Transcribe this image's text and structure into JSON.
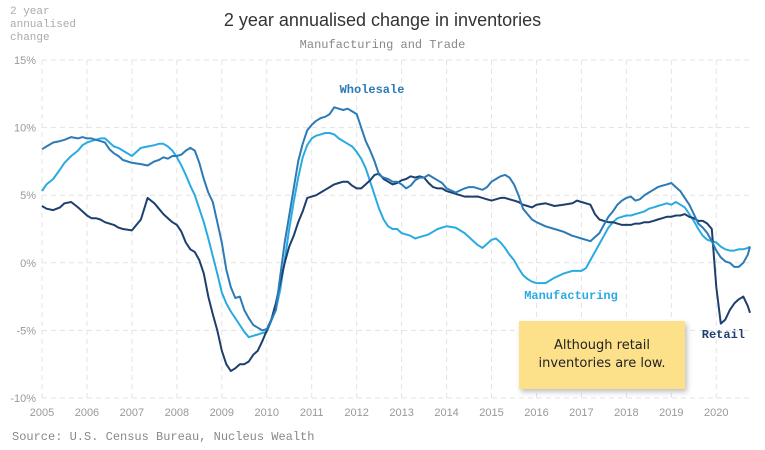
{
  "chart_data": {
    "type": "line",
    "title": "2 year annualised change in inventories",
    "subtitle": "Manufacturing and Trade",
    "ylabel": "2 year annualised change",
    "xlabel": "",
    "source": "Source: U.S. Census Bureau, Nucleus Wealth",
    "xlim": [
      2005.0,
      2020.75
    ],
    "ylim": [
      -10,
      15
    ],
    "y_ticks": [
      -10,
      -5,
      0,
      5,
      10,
      15
    ],
    "y_tick_labels": [
      "-10%",
      "-5%",
      "0%",
      "5%",
      "10%",
      "15%"
    ],
    "x_ticks": [
      2005,
      2006,
      2007,
      2008,
      2009,
      2010,
      2011,
      2012,
      2013,
      2014,
      2015,
      2016,
      2017,
      2018,
      2019,
      2020
    ],
    "x_tick_labels": [
      "2005",
      "2006",
      "2007",
      "2008",
      "2009",
      "2010",
      "2011",
      "2012",
      "2013",
      "2014",
      "2015",
      "2016",
      "2017",
      "2018",
      "2019",
      "2020"
    ],
    "grid": true,
    "annotation": "Although retail inventories are low.",
    "series": [
      {
        "name": "Wholesale",
        "color": "#2c7bb6",
        "x": [
          2005.0,
          2005.1,
          2005.25,
          2005.4,
          2005.5,
          2005.65,
          2005.8,
          2005.9,
          2006.0,
          2006.1,
          2006.2,
          2006.3,
          2006.4,
          2006.5,
          2006.6,
          2006.7,
          2006.8,
          2007.0,
          2007.2,
          2007.35,
          2007.5,
          2007.6,
          2007.7,
          2007.8,
          2007.9,
          2008.0,
          2008.1,
          2008.2,
          2008.3,
          2008.4,
          2008.5,
          2008.6,
          2008.7,
          2008.8,
          2008.9,
          2009.0,
          2009.1,
          2009.2,
          2009.3,
          2009.4,
          2009.5,
          2009.6,
          2009.7,
          2009.8,
          2009.9,
          2010.0,
          2010.1,
          2010.2,
          2010.3,
          2010.4,
          2010.5,
          2010.6,
          2010.7,
          2010.8,
          2010.9,
          2011.0,
          2011.1,
          2011.2,
          2011.3,
          2011.4,
          2011.5,
          2011.6,
          2011.7,
          2011.8,
          2011.9,
          2012.0,
          2012.1,
          2012.2,
          2012.3,
          2012.4,
          2012.5,
          2012.6,
          2012.7,
          2012.8,
          2012.9,
          2013.0,
          2013.1,
          2013.2,
          2013.3,
          2013.4,
          2013.5,
          2013.6,
          2013.7,
          2013.8,
          2013.9,
          2014.0,
          2014.2,
          2014.4,
          2014.5,
          2014.6,
          2014.7,
          2014.8,
          2014.9,
          2015.0,
          2015.1,
          2015.2,
          2015.3,
          2015.4,
          2015.5,
          2015.6,
          2015.7,
          2015.8,
          2015.9,
          2016.0,
          2016.2,
          2016.4,
          2016.6,
          2016.8,
          2016.9,
          2017.0,
          2017.1,
          2017.2,
          2017.3,
          2017.4,
          2017.5,
          2017.6,
          2017.7,
          2017.8,
          2017.9,
          2018.0,
          2018.1,
          2018.2,
          2018.3,
          2018.4,
          2018.5,
          2018.6,
          2018.7,
          2018.8,
          2018.9,
          2019.0,
          2019.1,
          2019.2,
          2019.3,
          2019.4,
          2019.5,
          2019.6,
          2019.7,
          2019.8,
          2019.9,
          2020.0,
          2020.1,
          2020.2,
          2020.3,
          2020.4,
          2020.5,
          2020.6,
          2020.7,
          2020.75
        ],
        "y": [
          8.4,
          8.6,
          8.9,
          9.0,
          9.1,
          9.3,
          9.2,
          9.3,
          9.2,
          9.2,
          9.1,
          9.0,
          8.9,
          8.4,
          8.1,
          7.9,
          7.6,
          7.4,
          7.3,
          7.2,
          7.5,
          7.6,
          7.8,
          7.7,
          7.9,
          7.9,
          8.0,
          8.3,
          8.5,
          8.3,
          7.4,
          6.2,
          5.2,
          4.5,
          3.0,
          1.5,
          -0.5,
          -1.8,
          -2.6,
          -2.5,
          -3.5,
          -4.1,
          -4.6,
          -4.8,
          -5.0,
          -4.9,
          -4.2,
          -3.5,
          -1.0,
          1.5,
          3.5,
          5.5,
          7.5,
          8.8,
          9.8,
          10.2,
          10.5,
          10.7,
          10.8,
          11.0,
          11.5,
          11.4,
          11.3,
          11.4,
          11.2,
          11.0,
          10.0,
          9.0,
          8.3,
          7.5,
          6.5,
          6.3,
          6.2,
          6.0,
          6.0,
          5.8,
          5.5,
          5.7,
          6.1,
          6.3,
          6.3,
          6.5,
          6.3,
          6.1,
          5.9,
          5.5,
          5.2,
          5.5,
          5.6,
          5.6,
          5.5,
          5.4,
          5.6,
          6.0,
          6.2,
          6.4,
          6.5,
          6.3,
          5.8,
          5.0,
          4.0,
          3.6,
          3.2,
          3.0,
          2.7,
          2.5,
          2.3,
          2.0,
          1.9,
          1.8,
          1.7,
          1.6,
          1.9,
          2.2,
          2.8,
          3.4,
          3.8,
          4.3,
          4.6,
          4.8,
          4.9,
          4.6,
          4.7,
          5.0,
          5.2,
          5.4,
          5.6,
          5.7,
          5.8,
          5.9,
          5.6,
          5.3,
          4.8,
          4.3,
          3.6,
          2.9,
          2.6,
          2.2,
          1.6,
          0.9,
          0.4,
          0.1,
          0.0,
          -0.3,
          -0.3,
          0.0,
          0.6,
          1.2
        ]
      },
      {
        "name": "Manufacturing",
        "color": "#29abe2",
        "x": [
          2005.0,
          2005.1,
          2005.25,
          2005.4,
          2005.5,
          2005.65,
          2005.8,
          2005.9,
          2006.0,
          2006.1,
          2006.2,
          2006.3,
          2006.4,
          2006.5,
          2006.6,
          2006.7,
          2006.8,
          2007.0,
          2007.2,
          2007.35,
          2007.5,
          2007.6,
          2007.7,
          2007.8,
          2007.9,
          2008.0,
          2008.1,
          2008.2,
          2008.3,
          2008.4,
          2008.5,
          2008.6,
          2008.7,
          2008.8,
          2008.9,
          2009.0,
          2009.1,
          2009.2,
          2009.3,
          2009.4,
          2009.5,
          2009.6,
          2009.7,
          2009.8,
          2009.9,
          2010.0,
          2010.1,
          2010.2,
          2010.3,
          2010.4,
          2010.5,
          2010.6,
          2010.7,
          2010.8,
          2010.9,
          2011.0,
          2011.1,
          2011.2,
          2011.3,
          2011.4,
          2011.5,
          2011.6,
          2011.7,
          2011.8,
          2011.9,
          2012.0,
          2012.1,
          2012.2,
          2012.3,
          2012.4,
          2012.5,
          2012.6,
          2012.7,
          2012.8,
          2012.9,
          2013.0,
          2013.1,
          2013.2,
          2013.3,
          2013.4,
          2013.5,
          2013.6,
          2013.7,
          2013.8,
          2013.9,
          2014.0,
          2014.2,
          2014.4,
          2014.5,
          2014.6,
          2014.7,
          2014.8,
          2014.9,
          2015.0,
          2015.1,
          2015.2,
          2015.3,
          2015.4,
          2015.5,
          2015.6,
          2015.7,
          2015.8,
          2015.9,
          2016.0,
          2016.2,
          2016.4,
          2016.6,
          2016.8,
          2016.9,
          2017.0,
          2017.1,
          2017.2,
          2017.3,
          2017.4,
          2017.5,
          2017.6,
          2017.7,
          2017.8,
          2017.9,
          2018.0,
          2018.1,
          2018.2,
          2018.3,
          2018.4,
          2018.5,
          2018.6,
          2018.7,
          2018.8,
          2018.9,
          2019.0,
          2019.1,
          2019.2,
          2019.3,
          2019.4,
          2019.5,
          2019.6,
          2019.7,
          2019.8,
          2019.9,
          2020.0,
          2020.1,
          2020.2,
          2020.3,
          2020.4,
          2020.5,
          2020.6,
          2020.7,
          2020.75
        ],
        "y": [
          5.3,
          5.8,
          6.2,
          6.9,
          7.4,
          7.9,
          8.3,
          8.7,
          8.9,
          9.0,
          9.1,
          9.2,
          9.2,
          8.9,
          8.6,
          8.5,
          8.3,
          7.9,
          8.5,
          8.6,
          8.7,
          8.8,
          8.8,
          8.6,
          8.3,
          7.8,
          7.2,
          6.5,
          5.7,
          5.0,
          4.0,
          3.0,
          1.8,
          0.5,
          -0.8,
          -2.2,
          -3.0,
          -3.6,
          -4.1,
          -4.6,
          -5.1,
          -5.5,
          -5.4,
          -5.3,
          -5.2,
          -5.1,
          -4.3,
          -3.5,
          -2.0,
          0.2,
          2.5,
          4.5,
          6.3,
          7.8,
          8.7,
          9.2,
          9.4,
          9.5,
          9.6,
          9.6,
          9.5,
          9.2,
          9.0,
          8.8,
          8.6,
          8.2,
          7.7,
          7.0,
          6.0,
          5.0,
          4.0,
          3.2,
          2.7,
          2.5,
          2.5,
          2.2,
          2.1,
          2.0,
          1.8,
          1.9,
          2.0,
          2.1,
          2.3,
          2.5,
          2.6,
          2.7,
          2.6,
          2.2,
          1.9,
          1.6,
          1.3,
          1.1,
          1.4,
          1.7,
          1.8,
          1.5,
          1.1,
          0.6,
          0.2,
          -0.4,
          -0.9,
          -1.2,
          -1.4,
          -1.5,
          -1.5,
          -1.1,
          -0.8,
          -0.6,
          -0.6,
          -0.6,
          -0.4,
          0.2,
          0.8,
          1.4,
          2.0,
          2.6,
          3.0,
          3.3,
          3.4,
          3.5,
          3.5,
          3.6,
          3.7,
          3.8,
          4.0,
          4.1,
          4.2,
          4.3,
          4.4,
          4.3,
          4.5,
          4.3,
          4.1,
          3.6,
          3.1,
          2.5,
          2.0,
          1.7,
          1.6,
          1.5,
          1.2,
          1.0,
          0.9,
          0.9,
          1.0,
          1.0,
          1.1,
          1.2
        ]
      },
      {
        "name": "Retail",
        "color": "#1c3f6e",
        "x": [
          2005.0,
          2005.1,
          2005.25,
          2005.4,
          2005.5,
          2005.65,
          2005.8,
          2005.9,
          2006.0,
          2006.1,
          2006.2,
          2006.3,
          2006.4,
          2006.5,
          2006.6,
          2006.7,
          2006.8,
          2007.0,
          2007.2,
          2007.35,
          2007.5,
          2007.6,
          2007.7,
          2007.8,
          2007.9,
          2008.0,
          2008.1,
          2008.2,
          2008.3,
          2008.4,
          2008.5,
          2008.6,
          2008.7,
          2008.8,
          2008.9,
          2009.0,
          2009.1,
          2009.2,
          2009.3,
          2009.4,
          2009.5,
          2009.6,
          2009.7,
          2009.8,
          2009.9,
          2010.0,
          2010.1,
          2010.2,
          2010.3,
          2010.4,
          2010.5,
          2010.6,
          2010.7,
          2010.8,
          2010.9,
          2011.0,
          2011.1,
          2011.2,
          2011.3,
          2011.4,
          2011.5,
          2011.6,
          2011.7,
          2011.8,
          2011.9,
          2012.0,
          2012.1,
          2012.2,
          2012.3,
          2012.4,
          2012.5,
          2012.6,
          2012.7,
          2012.8,
          2012.9,
          2013.0,
          2013.1,
          2013.2,
          2013.3,
          2013.4,
          2013.5,
          2013.6,
          2013.7,
          2013.8,
          2013.9,
          2014.0,
          2014.2,
          2014.4,
          2014.5,
          2014.6,
          2014.7,
          2014.8,
          2014.9,
          2015.0,
          2015.1,
          2015.2,
          2015.3,
          2015.4,
          2015.5,
          2015.6,
          2015.7,
          2015.8,
          2015.9,
          2016.0,
          2016.2,
          2016.4,
          2016.6,
          2016.8,
          2016.9,
          2017.0,
          2017.1,
          2017.2,
          2017.3,
          2017.4,
          2017.5,
          2017.6,
          2017.7,
          2017.8,
          2017.9,
          2018.0,
          2018.1,
          2018.2,
          2018.3,
          2018.4,
          2018.5,
          2018.6,
          2018.7,
          2018.8,
          2018.9,
          2019.0,
          2019.1,
          2019.2,
          2019.3,
          2019.4,
          2019.5,
          2019.6,
          2019.7,
          2019.8,
          2019.9,
          2020.0,
          2020.1,
          2020.2,
          2020.3,
          2020.4,
          2020.5,
          2020.6,
          2020.7,
          2020.75
        ],
        "y": [
          4.2,
          4.0,
          3.9,
          4.1,
          4.4,
          4.5,
          4.1,
          3.8,
          3.5,
          3.3,
          3.3,
          3.2,
          3.0,
          2.9,
          2.8,
          2.6,
          2.5,
          2.4,
          3.2,
          4.8,
          4.4,
          4.0,
          3.6,
          3.3,
          3.0,
          2.8,
          2.3,
          1.5,
          1.0,
          0.8,
          0.2,
          -0.8,
          -2.5,
          -3.8,
          -5.0,
          -6.5,
          -7.5,
          -8.0,
          -7.8,
          -7.5,
          -7.5,
          -7.3,
          -6.8,
          -6.5,
          -5.8,
          -5.0,
          -4.2,
          -3.0,
          -1.5,
          0.0,
          1.2,
          2.0,
          3.0,
          3.8,
          4.8,
          4.9,
          5.0,
          5.2,
          5.4,
          5.6,
          5.8,
          5.9,
          6.0,
          6.0,
          5.7,
          5.5,
          5.5,
          5.8,
          6.1,
          6.5,
          6.6,
          6.2,
          6.0,
          5.8,
          5.9,
          6.1,
          6.2,
          6.4,
          6.3,
          6.4,
          6.3,
          5.9,
          5.6,
          5.5,
          5.5,
          5.3,
          5.1,
          4.9,
          4.9,
          4.9,
          4.9,
          4.8,
          4.7,
          4.6,
          4.7,
          4.8,
          4.8,
          4.7,
          4.6,
          4.5,
          4.3,
          4.2,
          4.1,
          4.3,
          4.4,
          4.2,
          4.3,
          4.4,
          4.6,
          4.5,
          4.4,
          4.3,
          3.6,
          3.2,
          3.1,
          3.0,
          3.0,
          2.9,
          2.8,
          2.8,
          2.8,
          2.9,
          2.9,
          3.0,
          3.0,
          3.1,
          3.2,
          3.3,
          3.4,
          3.4,
          3.5,
          3.5,
          3.6,
          3.4,
          3.3,
          3.1,
          3.1,
          2.9,
          2.5,
          -1.8,
          -4.5,
          -4.2,
          -3.5,
          -3.0,
          -2.7,
          -2.5,
          -3.2,
          -3.7
        ]
      }
    ]
  }
}
